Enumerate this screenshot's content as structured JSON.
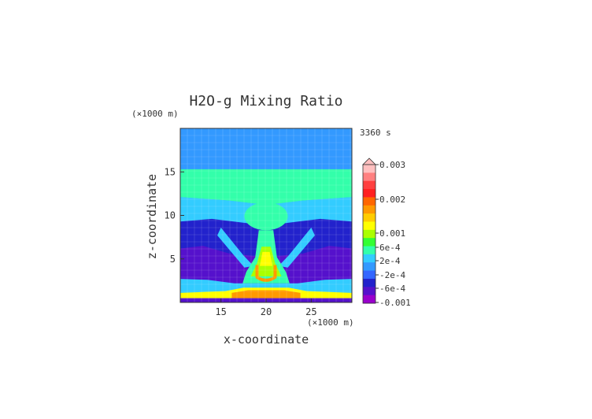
{
  "chart_data": {
    "type": "heatmap",
    "title": "H2O-g Mixing Ratio",
    "time_label": "3360 s",
    "xlabel": "x-coordinate",
    "ylabel": "z-coordinate",
    "x_unit": "(×1000 m)",
    "y_unit": "(×1000 m)",
    "xlim": [
      10.5,
      29.5
    ],
    "ylim": [
      0,
      20
    ],
    "x_ticks": [
      15,
      20,
      25
    ],
    "y_ticks": [
      5,
      10,
      15
    ],
    "colorbar": {
      "levels": [
        "0.003",
        "0.002",
        "0.001",
        "6e-4",
        "2e-4",
        "-2e-4",
        "-6e-4",
        "-0.001"
      ],
      "colors": [
        "#ffc0c0",
        "#ff8080",
        "#ff4040",
        "#ff2020",
        "#ff6600",
        "#ff9900",
        "#ffcc00",
        "#ffff00",
        "#aaff00",
        "#33ff33",
        "#33ffaa",
        "#33ccff",
        "#3399ff",
        "#3366ff",
        "#2222cc",
        "#5511cc",
        "#9900cc"
      ],
      "overflow_color": "#ffc0c0"
    },
    "color_map": {
      "blue_top": "#3399ff",
      "green": "#33ffaa",
      "cyan": "#33ccff",
      "deep_blue": "#2222cc",
      "purple": "#5511cc",
      "lime": "#aaff00",
      "yellow": "#ffff00",
      "orange": "#ff9900",
      "red": "#ff4040"
    }
  }
}
